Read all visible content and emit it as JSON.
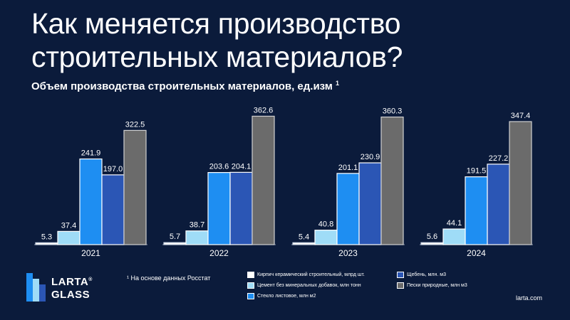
{
  "header": {
    "title": "Как меняется производство строительных материалов?",
    "subtitle": "Объем производства строительных материалов, ед.изм",
    "subtitle_note": "1"
  },
  "footer": {
    "logo_line1": "LARTA",
    "logo_line2": "GLASS",
    "logo_mark": "®",
    "footnote": "¹ На основе данных Росстат",
    "site": "larta.com"
  },
  "colors": {
    "background": "#0b1b3b",
    "brick": "#ffffff",
    "cement": "#9fdcf7",
    "glass": "#1e8ef2",
    "gravel": "#2b56b5",
    "sand": "#6b6b6b"
  },
  "chart_data": {
    "type": "bar",
    "categories": [
      "2021",
      "2022",
      "2023",
      "2024"
    ],
    "ylim": [
      0,
      380
    ],
    "series": [
      {
        "name": "Кирпич керамический строительный, млрд шт.",
        "color": "#ffffff",
        "values": [
          5.3,
          5.7,
          5.4,
          5.6
        ]
      },
      {
        "name": "Цемент без минеральных добавок, млн тонн",
        "color": "#9fdcf7",
        "values": [
          37.4,
          38.7,
          40.8,
          44.1
        ]
      },
      {
        "name": "Стекло листовое, млн м2",
        "color": "#1e8ef2",
        "values": [
          241.9,
          203.6,
          201.1,
          191.5
        ]
      },
      {
        "name": "Щебень, млн. м3",
        "color": "#2b56b5",
        "values": [
          197.0,
          204.1,
          230.9,
          227.2
        ]
      },
      {
        "name": "Пески природные, млн м3",
        "color": "#6b6b6b",
        "values": [
          322.5,
          362.6,
          360.3,
          347.4
        ]
      }
    ],
    "data_labels": [
      [
        "5.3",
        "37.4",
        "241.9",
        "197.0",
        "322.5"
      ],
      [
        "5.7",
        "38.7",
        "203.6",
        "204.1",
        "362.6"
      ],
      [
        "5.4",
        "40.8",
        "201.1",
        "230.9",
        "360.3"
      ],
      [
        "5.6",
        "44.1",
        "191.5",
        "227.2",
        "347.4"
      ]
    ],
    "grid": false,
    "legend_position": "bottom"
  }
}
